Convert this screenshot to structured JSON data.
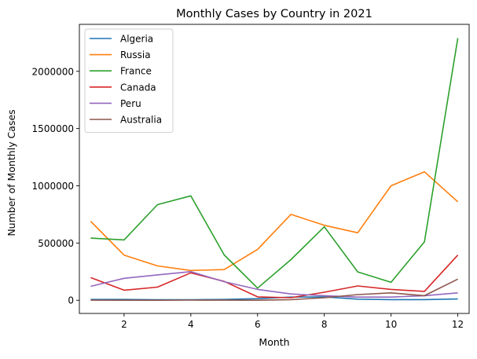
{
  "chart_data": {
    "type": "line",
    "title": "Monthly Cases by Country in 2021",
    "xlabel": "Month",
    "ylabel": "Number of Monthly Cases",
    "x": [
      1,
      2,
      3,
      4,
      5,
      6,
      7,
      8,
      9,
      10,
      11,
      12
    ],
    "xlim": [
      0.66,
      12.34
    ],
    "ylim": [
      -115000,
      2410000
    ],
    "xticks": [
      2,
      4,
      6,
      8,
      10,
      12
    ],
    "xtick_labels": [
      "2",
      "4",
      "6",
      "8",
      "10",
      "12"
    ],
    "yticks": [
      0,
      500000,
      1000000,
      1500000,
      2000000
    ],
    "ytick_labels": [
      "0",
      "500000",
      "1000000",
      "1500000",
      "2000000"
    ],
    "grid": false,
    "legend_position": "upper-left",
    "series": [
      {
        "name": "Algeria",
        "color": "#1f77b4",
        "values": [
          7000,
          7000,
          5000,
          5000,
          7000,
          14000,
          28000,
          30000,
          10000,
          6000,
          6000,
          11000
        ]
      },
      {
        "name": "Russia",
        "color": "#ff7f0e",
        "values": [
          690000,
          395000,
          300000,
          260000,
          268000,
          445000,
          750000,
          655000,
          590000,
          1000000,
          1122000,
          860000
        ]
      },
      {
        "name": "France",
        "color": "#2ca02c",
        "values": [
          543000,
          527000,
          835000,
          912000,
          396000,
          106000,
          355000,
          642000,
          248000,
          157000,
          510000,
          2290000
        ]
      },
      {
        "name": "Canada",
        "color": "#d62728",
        "values": [
          198000,
          88000,
          115000,
          240000,
          165000,
          30000,
          22000,
          70000,
          125000,
          95000,
          78000,
          395000
        ]
      },
      {
        "name": "Peru",
        "color": "#9467bd",
        "values": [
          122000,
          192000,
          222000,
          250000,
          162000,
          95000,
          55000,
          40000,
          28000,
          28000,
          40000,
          65000
        ]
      },
      {
        "name": "Australia",
        "color": "#8c564b",
        "values": [
          1000,
          500,
          500,
          1500,
          1000,
          500,
          5000,
          22000,
          50000,
          65000,
          40000,
          185000
        ]
      }
    ]
  }
}
